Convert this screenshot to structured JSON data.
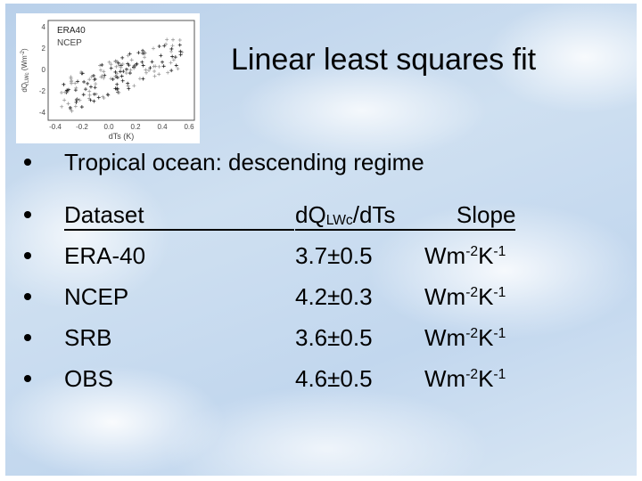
{
  "title": "Linear least squares fit",
  "inset": {
    "legend": [
      "ERA40",
      "NCEP"
    ],
    "y_label": [
      "dQ",
      "LWc",
      " (Wm",
      "-2",
      ")"
    ],
    "x_label": "dTs (K)",
    "x_ticks": [
      "-0.4",
      "-0.2",
      "0.0",
      "0.2",
      "0.4",
      "0.6"
    ],
    "y_ticks": [
      "4",
      "2",
      "0",
      "-2",
      "-4"
    ]
  },
  "bullet": "Tropical ocean: descending regime",
  "table": {
    "header": {
      "dataset": "Dataset",
      "ratio": [
        "dQ",
        "LWc",
        "/dTs"
      ],
      "slope": "Slope"
    },
    "rows": [
      {
        "dataset": "ERA-40",
        "value": "3.7±0.5",
        "unit": [
          "Wm",
          "-2",
          "K",
          "-1"
        ]
      },
      {
        "dataset": "NCEP",
        "value": "4.2±0.3",
        "unit": [
          "Wm",
          "-2",
          "K",
          "-1"
        ]
      },
      {
        "dataset": "SRB",
        "value": "3.6±0.5",
        "unit": [
          "Wm",
          "-2",
          "K",
          "-1"
        ]
      },
      {
        "dataset": "OBS",
        "value": "4.6±0.5",
        "unit": [
          "Wm",
          "-2",
          "K",
          "-1"
        ]
      }
    ]
  }
}
